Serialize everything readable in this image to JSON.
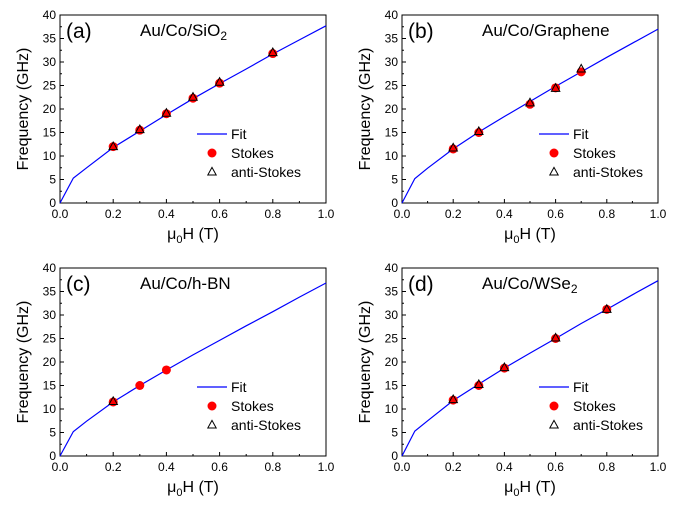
{
  "figure": {
    "style": {
      "fit_color": "#0000ff",
      "stokes_color": "#ff0000",
      "anti_stokes_color": "#000000",
      "axis_color": "#000000"
    }
  },
  "chart_data": [
    {
      "type": "scatter",
      "panel_tag": "(a)",
      "title": "Au/Co/SiO",
      "title_sub": "2",
      "xlabel_main": "μ",
      "xlabel_sub": "0",
      "xlabel_rest": "H (T)",
      "ylabel": "Frequency (GHz)",
      "xlim": [
        0,
        1.0
      ],
      "ylim": [
        0,
        40
      ],
      "xticks": [
        "0.0",
        "0.2",
        "0.4",
        "0.6",
        "0.8",
        "1.0"
      ],
      "yticks": [
        "0",
        "5",
        "10",
        "15",
        "20",
        "25",
        "30",
        "35",
        "40"
      ],
      "legend_position": "bottom-right",
      "series": [
        {
          "name": "Fit",
          "kind": "line",
          "x": [
            0,
            0.05,
            0.1,
            0.2,
            0.3,
            0.4,
            0.5,
            0.6,
            0.7,
            0.8,
            0.9,
            1.0
          ],
          "y": [
            0,
            5.3,
            7.5,
            11.8,
            15.3,
            18.8,
            22.2,
            25.4,
            28.5,
            31.7,
            34.7,
            37.7
          ]
        },
        {
          "name": "Stokes",
          "kind": "circle",
          "x": [
            0.2,
            0.3,
            0.4,
            0.5,
            0.6,
            0.8
          ],
          "y": [
            12.0,
            15.5,
            19.0,
            22.3,
            25.5,
            31.8
          ]
        },
        {
          "name": "anti-Stokes",
          "kind": "triangle",
          "x": [
            0.2,
            0.3,
            0.4,
            0.5,
            0.6,
            0.8
          ],
          "y": [
            12.0,
            15.6,
            19.1,
            22.5,
            25.7,
            32.0
          ]
        }
      ]
    },
    {
      "type": "scatter",
      "panel_tag": "(b)",
      "title": "Au/Co/Graphene",
      "title_sub": "",
      "xlabel_main": "μ",
      "xlabel_sub": "0",
      "xlabel_rest": "H (T)",
      "ylabel": "Frequency (GHz)",
      "xlim": [
        0,
        1.0
      ],
      "ylim": [
        0,
        40
      ],
      "xticks": [
        "0.0",
        "0.2",
        "0.4",
        "0.6",
        "0.8",
        "1.0"
      ],
      "yticks": [
        "0",
        "5",
        "10",
        "15",
        "20",
        "25",
        "30",
        "35",
        "40"
      ],
      "legend_position": "bottom-right",
      "series": [
        {
          "name": "Fit",
          "kind": "line",
          "x": [
            0,
            0.05,
            0.1,
            0.2,
            0.3,
            0.4,
            0.5,
            0.6,
            0.7,
            0.8,
            0.9,
            1.0
          ],
          "y": [
            0,
            5.2,
            7.4,
            11.5,
            15.1,
            18.4,
            21.6,
            24.8,
            27.9,
            31.0,
            34.0,
            37.0
          ]
        },
        {
          "name": "Stokes",
          "kind": "circle",
          "x": [
            0.2,
            0.3,
            0.5,
            0.6,
            0.7
          ],
          "y": [
            11.5,
            15.0,
            21.0,
            24.5,
            27.9
          ]
        },
        {
          "name": "anti-Stokes",
          "kind": "triangle",
          "x": [
            0.2,
            0.3,
            0.5,
            0.6,
            0.7
          ],
          "y": [
            11.7,
            15.2,
            21.3,
            24.4,
            28.5
          ]
        }
      ]
    },
    {
      "type": "scatter",
      "panel_tag": "(c)",
      "title": "Au/Co/h-BN",
      "title_sub": "",
      "xlabel_main": "μ",
      "xlabel_sub": "0",
      "xlabel_rest": "H (T)",
      "ylabel": "Frequency (GHz)",
      "xlim": [
        0,
        1.0
      ],
      "ylim": [
        0,
        40
      ],
      "xticks": [
        "0.0",
        "0.2",
        "0.4",
        "0.6",
        "0.8",
        "1.0"
      ],
      "yticks": [
        "0",
        "5",
        "10",
        "15",
        "20",
        "25",
        "30",
        "35",
        "40"
      ],
      "legend_position": "bottom-right",
      "series": [
        {
          "name": "Fit",
          "kind": "line",
          "x": [
            0,
            0.05,
            0.1,
            0.2,
            0.3,
            0.4,
            0.5,
            0.6,
            0.7,
            0.8,
            0.9,
            1.0
          ],
          "y": [
            0,
            5.2,
            7.4,
            11.5,
            15.0,
            18.3,
            21.5,
            24.6,
            27.7,
            30.7,
            33.8,
            36.8
          ]
        },
        {
          "name": "Stokes",
          "kind": "circle",
          "x": [
            0.2,
            0.3,
            0.4
          ],
          "y": [
            11.5,
            15.0,
            18.3
          ]
        },
        {
          "name": "anti-Stokes",
          "kind": "triangle",
          "x": [
            0.2
          ],
          "y": [
            11.6
          ]
        }
      ]
    },
    {
      "type": "scatter",
      "panel_tag": "(d)",
      "title": "Au/Co/WSe",
      "title_sub": "2",
      "xlabel_main": "μ",
      "xlabel_sub": "0",
      "xlabel_rest": "H (T)",
      "ylabel": "Frequency (GHz)",
      "xlim": [
        0,
        1.0
      ],
      "ylim": [
        0,
        40
      ],
      "xticks": [
        "0.0",
        "0.2",
        "0.4",
        "0.6",
        "0.8",
        "1.0"
      ],
      "yticks": [
        "0",
        "5",
        "10",
        "15",
        "20",
        "25",
        "30",
        "35",
        "40"
      ],
      "legend_position": "bottom-right",
      "series": [
        {
          "name": "Fit",
          "kind": "line",
          "x": [
            0,
            0.05,
            0.1,
            0.2,
            0.3,
            0.4,
            0.5,
            0.6,
            0.7,
            0.8,
            0.9,
            1.0
          ],
          "y": [
            0,
            5.3,
            7.5,
            11.8,
            15.3,
            18.7,
            21.9,
            25.0,
            28.2,
            31.2,
            34.3,
            37.3
          ]
        },
        {
          "name": "Stokes",
          "kind": "circle",
          "x": [
            0.2,
            0.3,
            0.4,
            0.6,
            0.8
          ],
          "y": [
            11.9,
            15.0,
            18.7,
            25.0,
            31.2
          ]
        },
        {
          "name": "anti-Stokes",
          "kind": "triangle",
          "x": [
            0.2,
            0.3,
            0.4,
            0.6,
            0.8
          ],
          "y": [
            12.0,
            15.2,
            18.8,
            25.1,
            31.2
          ]
        }
      ]
    }
  ]
}
